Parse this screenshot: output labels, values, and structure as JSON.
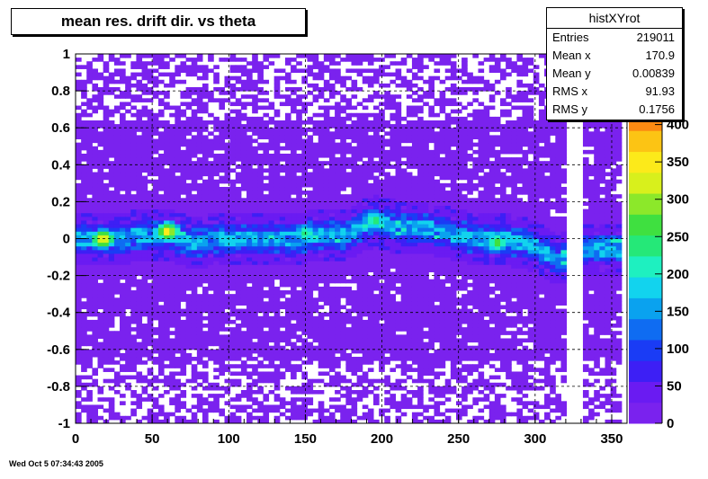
{
  "title": "mean res. drift dir. vs theta",
  "footer_timestamp": "Wed Oct  5 07:34:43 2005",
  "stats": {
    "name": "histXYrot",
    "rows": [
      {
        "label": "Entries",
        "value": "219011"
      },
      {
        "label": "Mean x",
        "value": "170.9"
      },
      {
        "label": "Mean y",
        "value": "0.00839"
      },
      {
        "label": "RMS x",
        "value": "91.93"
      },
      {
        "label": "RMS y",
        "value": "0.1756"
      }
    ]
  },
  "chart_data": {
    "type": "heatmap",
    "title": "mean res. drift dir. vs theta",
    "xlim": [
      0,
      360
    ],
    "ylim": [
      -1,
      1
    ],
    "x_ticks": [
      0,
      50,
      100,
      150,
      200,
      250,
      300,
      350
    ],
    "y_ticks": [
      -1,
      -0.8,
      -0.6,
      -0.4,
      -0.2,
      0,
      0.2,
      0.4,
      0.6,
      0.8,
      1
    ],
    "color_scale": {
      "min": 0,
      "max": 420,
      "ticks": [
        0,
        50,
        100,
        150,
        200,
        250,
        300,
        350,
        400
      ]
    },
    "grid": true,
    "gaps_x": [
      [
        320,
        333
      ],
      [
        356,
        360
      ]
    ],
    "band": [
      {
        "x": 0,
        "y": 0.0
      },
      {
        "x": 20,
        "y": 0.0
      },
      {
        "x": 50,
        "y": 0.02
      },
      {
        "x": 60,
        "y": 0.02
      },
      {
        "x": 75,
        "y": -0.02
      },
      {
        "x": 100,
        "y": 0.0
      },
      {
        "x": 150,
        "y": 0.01
      },
      {
        "x": 180,
        "y": 0.03
      },
      {
        "x": 195,
        "y": 0.1
      },
      {
        "x": 215,
        "y": 0.05
      },
      {
        "x": 230,
        "y": 0.06
      },
      {
        "x": 260,
        "y": 0.0
      },
      {
        "x": 280,
        "y": 0.0
      },
      {
        "x": 300,
        "y": -0.04
      },
      {
        "x": 315,
        "y": -0.12
      },
      {
        "x": 335,
        "y": -0.05
      },
      {
        "x": 345,
        "y": -0.05
      }
    ],
    "hotspots": [
      {
        "x": 18,
        "y": 0.0,
        "count": 400
      },
      {
        "x": 60,
        "y": 0.04,
        "count": 410
      },
      {
        "x": 150,
        "y": 0.03,
        "count": 260
      },
      {
        "x": 195,
        "y": 0.1,
        "count": 280
      },
      {
        "x": 275,
        "y": -0.02,
        "count": 300
      }
    ]
  }
}
